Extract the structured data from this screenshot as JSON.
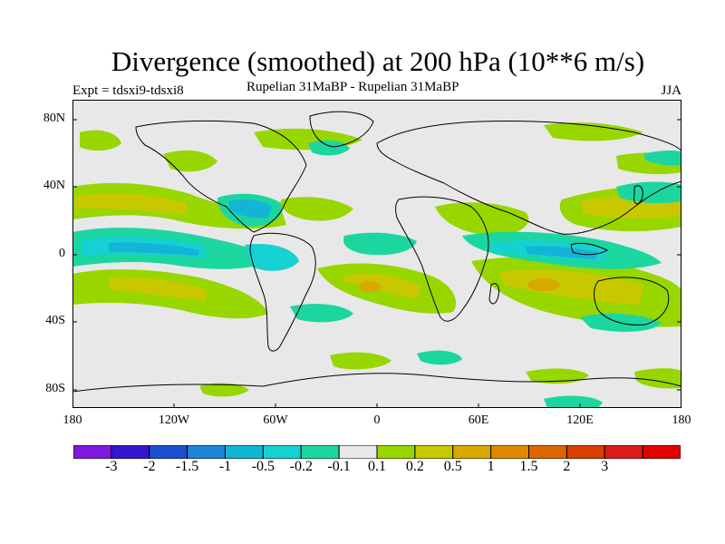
{
  "title": "Divergence (smoothed) at 200 hPa (10**6 m/s)",
  "experiment": "Expt = tdsxi9-tdsxi8",
  "subtitle": "Rupelian  31MaBP - Rupelian  31MaBP",
  "season": "JJA",
  "axes": {
    "y_ticks": [
      "80N",
      "40N",
      "0",
      "40S",
      "80S"
    ],
    "x_ticks": [
      "180",
      "120W",
      "60W",
      "0",
      "60E",
      "120E",
      "180"
    ]
  },
  "colorbar": {
    "colors": [
      "#7d1adb",
      "#3317cf",
      "#1b4fd1",
      "#1e85d6",
      "#13b5d6",
      "#15d1d1",
      "#1cd6a0",
      "#e8e8e8",
      "#98d600",
      "#c8c800",
      "#d9a800",
      "#e08900",
      "#dd6600",
      "#d93d00",
      "#dd1b1b",
      "#e20000"
    ],
    "labels": [
      "-3",
      "-2",
      "-1.5",
      "-1",
      "-0.5",
      "-0.2",
      "-0.1",
      "0.1",
      "0.2",
      "0.5",
      "1",
      "1.5",
      "2",
      "3"
    ]
  },
  "colors": {
    "background": "#e8e8e8",
    "neg_weak": "#1cd6a0",
    "neg_mid": "#15d1d1",
    "neg_strong": "#13b5d6",
    "pos_weak": "#98d600",
    "pos_mid": "#c8c800",
    "pos_strong": "#d9a800"
  }
}
